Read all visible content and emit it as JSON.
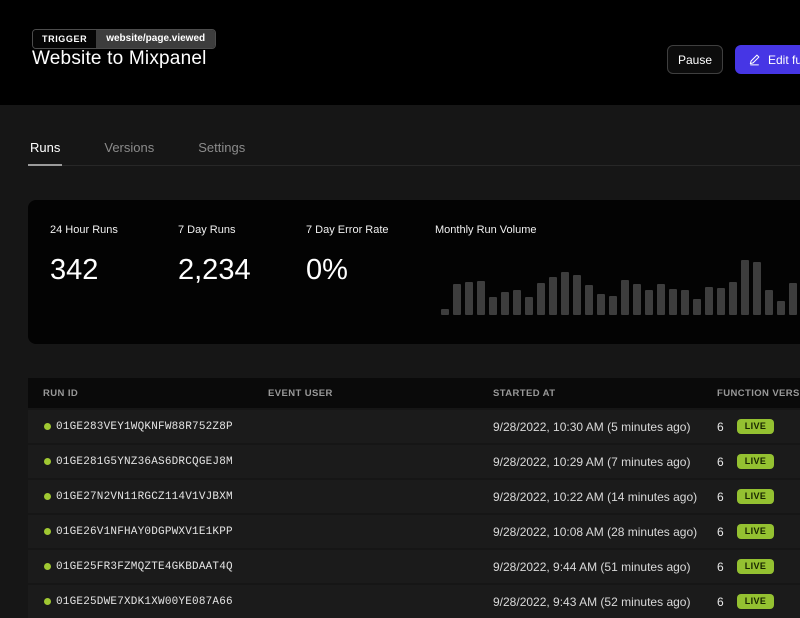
{
  "header": {
    "trigger_label": "TRIGGER",
    "trigger_event": "website/page.viewed",
    "title": "Website to Mixpanel",
    "pause_label": "Pause",
    "edit_label": "Edit function"
  },
  "tabs": [
    {
      "label": "Runs",
      "active": true
    },
    {
      "label": "Versions",
      "active": false
    },
    {
      "label": "Settings",
      "active": false
    }
  ],
  "stats": [
    {
      "label": "24 Hour Runs",
      "value": "342"
    },
    {
      "label": "7 Day Runs",
      "value": "2,234"
    },
    {
      "label": "7 Day Error Rate",
      "value": "0%"
    }
  ],
  "chart_data": {
    "type": "bar",
    "title": "Monthly Run Volume",
    "values": [
      11,
      56,
      60,
      62,
      33,
      42,
      45,
      33,
      58,
      69,
      78,
      73,
      55,
      38,
      35,
      64,
      56,
      45,
      56,
      47,
      45,
      29,
      51,
      49,
      60,
      100,
      96,
      45,
      25,
      58,
      75
    ],
    "ylim": [
      0,
      100
    ],
    "axes_visible": false,
    "legend": false
  },
  "table": {
    "columns": [
      "RUN ID",
      "EVENT USER",
      "STARTED AT",
      "FUNCTION VERSION"
    ],
    "rows": [
      {
        "run_id": "01GE283VEY1WQKNFW88R752Z8P",
        "event_user": "",
        "started_at": "9/28/2022, 10:30 AM (5 minutes ago)",
        "version": "6",
        "status": "LIVE"
      },
      {
        "run_id": "01GE281G5YNZ36AS6DRCQGEJ8M",
        "event_user": "",
        "started_at": "9/28/2022, 10:29 AM (7 minutes ago)",
        "version": "6",
        "status": "LIVE"
      },
      {
        "run_id": "01GE27N2VN11RGCZ114V1VJBXM",
        "event_user": "",
        "started_at": "9/28/2022, 10:22 AM (14 minutes ago)",
        "version": "6",
        "status": "LIVE"
      },
      {
        "run_id": "01GE26V1NFHAY0DGPWXV1E1KPP",
        "event_user": "",
        "started_at": "9/28/2022, 10:08 AM (28 minutes ago)",
        "version": "6",
        "status": "LIVE"
      },
      {
        "run_id": "01GE25FR3FZMQZTE4GKBDAAT4Q",
        "event_user": "",
        "started_at": "9/28/2022, 9:44 AM (51 minutes ago)",
        "version": "6",
        "status": "LIVE"
      },
      {
        "run_id": "01GE25DWE7XDK1XW00YE087A66",
        "event_user": "",
        "started_at": "9/28/2022, 9:43 AM (52 minutes ago)",
        "version": "6",
        "status": "LIVE"
      }
    ]
  },
  "colors": {
    "accent_indigo": "#4636e5",
    "status_live_bg": "#94c131",
    "status_live_text": "#182400",
    "run_dot": "#a0c832",
    "bar_color": "#3d3d3d"
  }
}
